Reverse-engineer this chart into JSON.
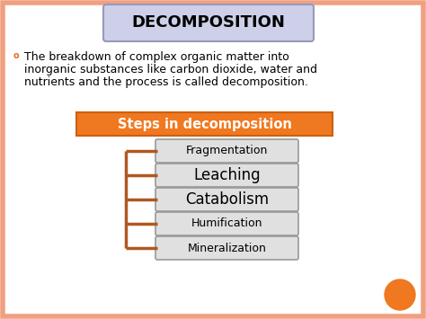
{
  "title": "DECOMPOSITION",
  "title_box_color": "#cdd0e8",
  "title_border_color": "#9999bb",
  "body_bullet": "o",
  "body_line1": "The breakdown of complex organic matter into",
  "body_line2": "inorganic substances like carbon dioxide, water and",
  "body_line3": "nutrients and the process is called decomposition.",
  "header_label": "Steps in decomposition",
  "header_bg": "#f07820",
  "header_text_color": "#ffffff",
  "steps": [
    "Fragmentation",
    "Leaching",
    "Catabolism",
    "Humification",
    "Mineralization"
  ],
  "step_font_sizes": [
    9,
    12,
    12,
    9,
    9
  ],
  "step_bg": "#e0e0e0",
  "step_border": "#999999",
  "connector_color": "#b05820",
  "bg_color": "#ffffff",
  "orange_circle_color": "#f07820",
  "slide_border_color": "#f0a080",
  "title_fontsize": 13,
  "body_fontsize": 9,
  "header_fontsize": 10.5
}
